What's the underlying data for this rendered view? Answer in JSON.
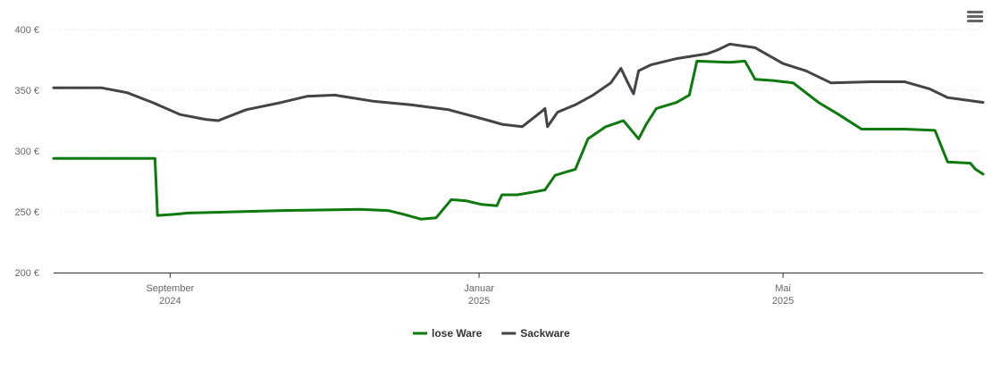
{
  "menu_icon": "hamburger-menu-icon",
  "chart_data": {
    "type": "line",
    "y_ticks": [
      "200 €",
      "250 €",
      "300 €",
      "350 €",
      "400 €"
    ],
    "ylim": [
      200,
      400
    ],
    "x_range": [
      "2024-07-17",
      "2025-07-19"
    ],
    "x_ticks": [
      {
        "date": "2024-09-01",
        "month": "September",
        "year": "2024"
      },
      {
        "date": "2025-01-01",
        "month": "Januar",
        "year": "2025"
      },
      {
        "date": "2025-05-01",
        "month": "Mai",
        "year": "2025"
      }
    ],
    "legend": "bottom-center",
    "grid": true,
    "series": [
      {
        "name": "lose Ware",
        "color": "#0c7a0c",
        "points": [
          [
            "2024-07-17",
            294
          ],
          [
            "2024-08-26",
            294
          ],
          [
            "2024-08-27",
            247
          ],
          [
            "2024-09-03",
            248
          ],
          [
            "2024-09-08",
            249
          ],
          [
            "2024-10-15",
            251
          ],
          [
            "2024-11-15",
            252
          ],
          [
            "2024-11-26",
            251
          ],
          [
            "2024-12-02",
            248
          ],
          [
            "2024-12-09",
            244
          ],
          [
            "2024-12-15",
            245
          ],
          [
            "2024-12-21",
            260
          ],
          [
            "2024-12-27",
            259
          ],
          [
            "2025-01-02",
            256
          ],
          [
            "2025-01-08",
            255
          ],
          [
            "2025-01-10",
            264
          ],
          [
            "2025-01-16",
            264
          ],
          [
            "2025-01-22",
            266
          ],
          [
            "2025-01-27",
            268
          ],
          [
            "2025-01-31",
            280
          ],
          [
            "2025-02-08",
            285
          ],
          [
            "2025-02-13",
            310
          ],
          [
            "2025-02-20",
            320
          ],
          [
            "2025-02-27",
            325
          ],
          [
            "2025-03-05",
            310
          ],
          [
            "2025-03-08",
            322
          ],
          [
            "2025-03-12",
            335
          ],
          [
            "2025-03-20",
            340
          ],
          [
            "2025-03-25",
            346
          ],
          [
            "2025-03-28",
            374
          ],
          [
            "2025-04-10",
            373
          ],
          [
            "2025-04-16",
            374
          ],
          [
            "2025-04-20",
            359
          ],
          [
            "2025-04-27",
            358
          ],
          [
            "2025-05-05",
            356
          ],
          [
            "2025-05-15",
            340
          ],
          [
            "2025-05-23",
            330
          ],
          [
            "2025-06-01",
            318
          ],
          [
            "2025-06-18",
            318
          ],
          [
            "2025-06-30",
            317
          ],
          [
            "2025-07-05",
            291
          ],
          [
            "2025-07-14",
            290
          ],
          [
            "2025-07-16",
            285
          ],
          [
            "2025-07-19",
            281
          ]
        ]
      },
      {
        "name": "Sackware",
        "color": "#434348",
        "points": [
          [
            "2024-07-17",
            352
          ],
          [
            "2024-08-05",
            352
          ],
          [
            "2024-08-15",
            348
          ],
          [
            "2024-08-25",
            340
          ],
          [
            "2024-09-05",
            330
          ],
          [
            "2024-09-15",
            326
          ],
          [
            "2024-09-20",
            325
          ],
          [
            "2024-10-01",
            334
          ],
          [
            "2024-10-15",
            340
          ],
          [
            "2024-10-25",
            345
          ],
          [
            "2024-11-05",
            346
          ],
          [
            "2024-11-20",
            341
          ],
          [
            "2024-12-05",
            338
          ],
          [
            "2024-12-20",
            334
          ],
          [
            "2025-01-05",
            325
          ],
          [
            "2025-01-10",
            322
          ],
          [
            "2025-01-18",
            320
          ],
          [
            "2025-01-26",
            333
          ],
          [
            "2025-01-27",
            335
          ],
          [
            "2025-01-28",
            320
          ],
          [
            "2025-02-01",
            332
          ],
          [
            "2025-02-08",
            338
          ],
          [
            "2025-02-15",
            346
          ],
          [
            "2025-02-22",
            356
          ],
          [
            "2025-02-26",
            368
          ],
          [
            "2025-03-01",
            355
          ],
          [
            "2025-03-03",
            347
          ],
          [
            "2025-03-05",
            366
          ],
          [
            "2025-03-10",
            371
          ],
          [
            "2025-03-20",
            376
          ],
          [
            "2025-04-01",
            380
          ],
          [
            "2025-04-05",
            383
          ],
          [
            "2025-04-10",
            388
          ],
          [
            "2025-04-20",
            385
          ],
          [
            "2025-05-01",
            372
          ],
          [
            "2025-05-10",
            366
          ],
          [
            "2025-05-20",
            356
          ],
          [
            "2025-06-05",
            357
          ],
          [
            "2025-06-18",
            357
          ],
          [
            "2025-06-28",
            351
          ],
          [
            "2025-07-05",
            344
          ],
          [
            "2025-07-12",
            342
          ],
          [
            "2025-07-19",
            340
          ]
        ]
      }
    ]
  }
}
